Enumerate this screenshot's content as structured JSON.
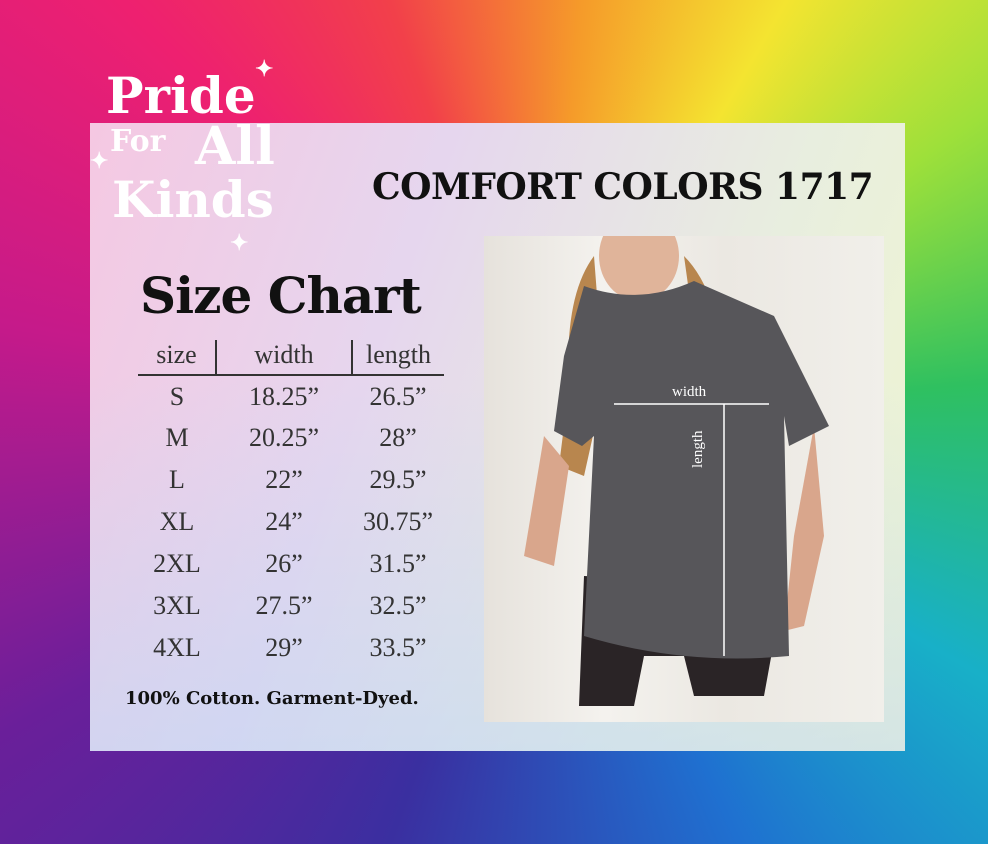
{
  "logo": {
    "text": "Pride For All Kinds"
  },
  "brand": "COMFORT COLORS 1717",
  "title": "Size Chart",
  "table": {
    "headers": [
      "size",
      "width",
      "length"
    ],
    "rows": [
      [
        "S",
        "18.25”",
        "26.5”"
      ],
      [
        "M",
        "20.25”",
        "28”"
      ],
      [
        "L",
        "22”",
        "29.5”"
      ],
      [
        "XL",
        "24”",
        "30.75”"
      ],
      [
        "2XL",
        "26”",
        "31.5”"
      ],
      [
        "3XL",
        "27.5”",
        "32.5”"
      ],
      [
        "4XL",
        "29”",
        "33.5”"
      ]
    ]
  },
  "footer": "100% Cotton. Garment-Dyed.",
  "photo": {
    "width_label": "width",
    "length_label": "length"
  }
}
